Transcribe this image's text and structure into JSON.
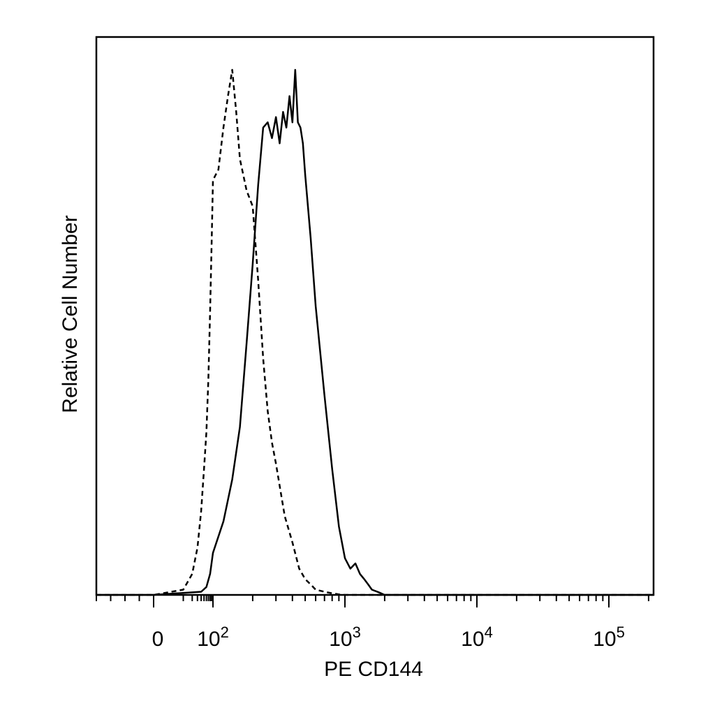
{
  "chart_data": {
    "type": "area",
    "title": "",
    "xlabel": "PE CD144",
    "ylabel": "Relative Cell Number",
    "x_scale": "biexponential",
    "x_range": [
      -40,
      250000
    ],
    "y_range": [
      0,
      100
    ],
    "x_ticks": [
      {
        "value": 0,
        "base": "0",
        "exp": ""
      },
      {
        "value": 100,
        "base": "10",
        "exp": "2"
      },
      {
        "value": 1000,
        "base": "10",
        "exp": "3"
      },
      {
        "value": 10000,
        "base": "10",
        "exp": "4"
      },
      {
        "value": 100000,
        "base": "10",
        "exp": "5"
      }
    ],
    "grid": false,
    "legend": "none",
    "series": [
      {
        "style": "dashed",
        "color": "#000000",
        "x": [
          -40,
          0,
          10,
          20,
          30,
          40,
          50,
          60,
          70,
          80,
          90,
          100,
          110,
          120,
          130,
          140,
          150,
          160,
          180,
          200,
          220,
          240,
          260,
          280,
          300,
          350,
          400,
          450,
          500,
          550,
          600,
          700,
          800,
          900,
          1000,
          250000
        ],
        "y": [
          0,
          0,
          1,
          4,
          9,
          16,
          24,
          31,
          41,
          54,
          67,
          79,
          81,
          89,
          95,
          100,
          92,
          83,
          77,
          74,
          60,
          45,
          35,
          29,
          25,
          15,
          10,
          5,
          3,
          2,
          1,
          0.6,
          0.3,
          0.1,
          0,
          0
        ]
      },
      {
        "style": "solid",
        "color": "#000000",
        "x": [
          -40,
          0,
          40,
          60,
          80,
          100,
          120,
          140,
          160,
          180,
          200,
          220,
          240,
          260,
          280,
          300,
          320,
          340,
          360,
          380,
          400,
          420,
          440,
          460,
          480,
          500,
          550,
          600,
          700,
          800,
          900,
          1000,
          1100,
          1200,
          1300,
          1400,
          1500,
          1600,
          1800,
          2000,
          2200,
          250000
        ],
        "y": [
          0,
          0,
          0.6,
          1.5,
          4,
          8,
          14,
          22,
          32,
          48,
          63,
          78,
          89,
          90,
          87,
          91,
          86,
          92,
          89,
          95,
          90,
          100,
          90,
          89,
          86,
          80,
          68,
          55,
          38,
          24,
          13,
          7,
          5,
          6,
          4,
          3,
          2,
          1,
          0.5,
          0,
          0,
          0
        ]
      }
    ]
  }
}
